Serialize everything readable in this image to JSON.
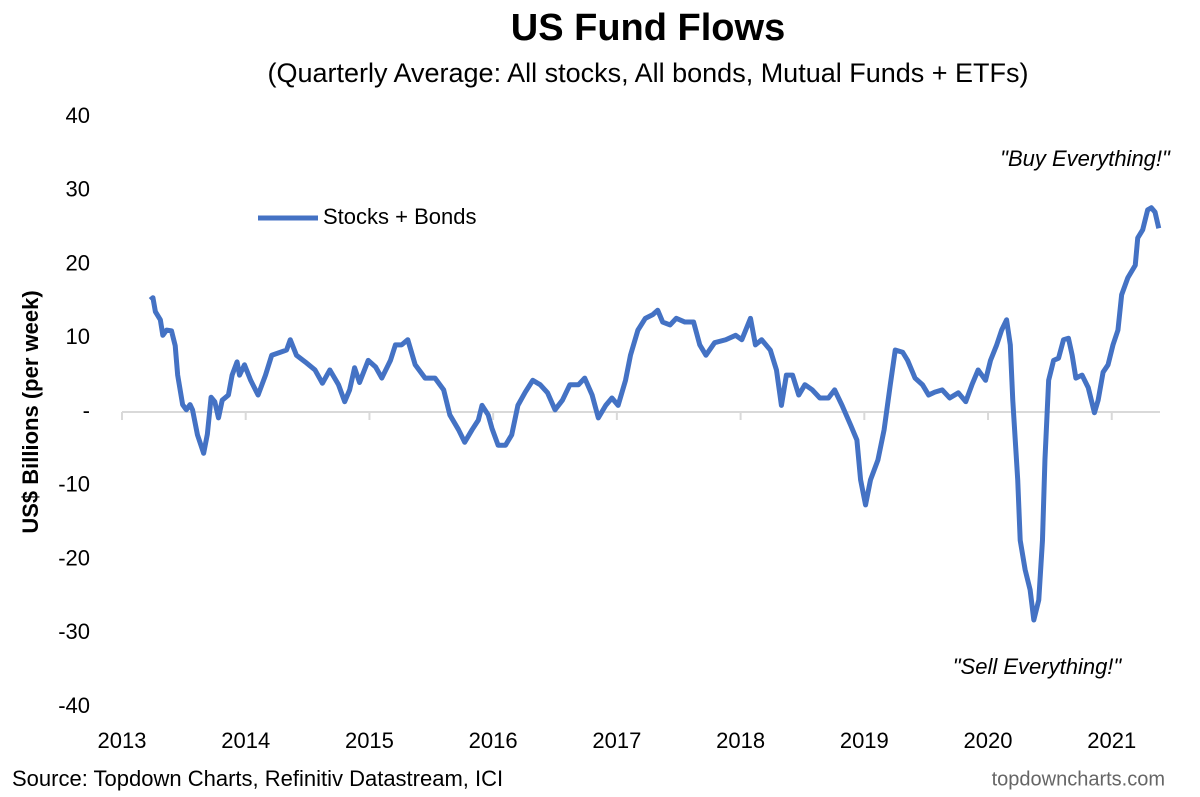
{
  "chart_data": {
    "type": "line",
    "title": "US Fund Flows",
    "subtitle": "(Quarterly Average: All stocks, All bonds, Mutual Funds + ETFs)",
    "y_label": "US$ Billions  (per week)",
    "annotations": [
      "\"Buy Everything!\"",
      "\"Sell Everything!\""
    ],
    "source": "Source: Topdown Charts, Refinitiv Datastream, ICI",
    "watermark": "topdowncharts.com",
    "xlim": [
      2013,
      2021.39
    ],
    "xticks": [
      2013,
      2014,
      2015,
      2016,
      2017,
      2018,
      2019,
      2020,
      2021
    ],
    "ylim": [
      -40,
      40
    ],
    "yticks": [
      -40,
      -30,
      -20,
      -10,
      {
        "value": 0,
        "label": "-"
      },
      10,
      20,
      30,
      40
    ],
    "legend": "upper left",
    "x": [
      2013.23,
      2013.25,
      2013.27,
      2013.31,
      2013.33,
      2013.36,
      2013.4,
      2013.43,
      2013.45,
      2013.49,
      2013.52,
      2013.55,
      2013.57,
      2013.61,
      2013.66,
      2013.69,
      2013.72,
      2013.75,
      2013.78,
      2013.81,
      2013.86,
      2013.89,
      2013.93,
      2013.95,
      2013.99,
      2014.04,
      2014.1,
      2014.16,
      2014.21,
      2014.28,
      2014.33,
      2014.36,
      2014.41,
      2014.48,
      2014.56,
      2014.62,
      2014.68,
      2014.75,
      2014.8,
      2014.84,
      2014.88,
      2014.92,
      2014.99,
      2015.05,
      2015.1,
      2015.17,
      2015.21,
      2015.26,
      2015.31,
      2015.37,
      2015.45,
      2015.53,
      2015.6,
      2015.65,
      2015.72,
      2015.77,
      2015.83,
      2015.88,
      2015.91,
      2015.96,
      2015.99,
      2016.04,
      2016.1,
      2016.15,
      2016.2,
      2016.26,
      2016.32,
      2016.38,
      2016.44,
      2016.5,
      2016.56,
      2016.62,
      2016.69,
      2016.74,
      2016.8,
      2016.85,
      2016.91,
      2016.96,
      2017.01,
      2017.07,
      2017.11,
      2017.17,
      2017.23,
      2017.29,
      2017.33,
      2017.37,
      2017.43,
      2017.48,
      2017.55,
      2017.62,
      2017.67,
      2017.72,
      2017.79,
      2017.88,
      2017.96,
      2018.01,
      2018.08,
      2018.12,
      2018.17,
      2018.24,
      2018.29,
      2018.33,
      2018.37,
      2018.42,
      2018.47,
      2018.52,
      2018.58,
      2018.64,
      2018.71,
      2018.76,
      2018.82,
      2018.89,
      2018.94,
      2018.97,
      2019.01,
      2019.05,
      2019.11,
      2019.16,
      2019.21,
      2019.25,
      2019.31,
      2019.35,
      2019.41,
      2019.47,
      2019.52,
      2019.57,
      2019.63,
      2019.69,
      2019.76,
      2019.82,
      2019.87,
      2019.92,
      2019.98,
      2020.02,
      2020.07,
      2020.11,
      2020.15,
      2020.18,
      2020.2,
      2020.24,
      2020.26,
      2020.3,
      2020.34,
      2020.37,
      2020.41,
      2020.44,
      2020.46,
      2020.49,
      2020.53,
      2020.57,
      2020.61,
      2020.65,
      2020.68,
      2020.71,
      2020.76,
      2020.81,
      2020.86,
      2020.89,
      2020.93,
      2020.97,
      2021.01,
      2021.05,
      2021.08,
      2021.13,
      2021.19,
      2021.21,
      2021.25,
      2021.29,
      2021.32,
      2021.35,
      2021.38
    ],
    "series": [
      {
        "name": "Stocks + Bonds",
        "color": "#4472c4",
        "values": [
          15.2,
          15.5,
          13.6,
          12.5,
          10.4,
          11.1,
          11,
          9,
          5,
          1,
          0.3,
          1,
          0.3,
          -3.1,
          -5.6,
          -3,
          2,
          1.4,
          -0.8,
          1.6,
          2.3,
          5,
          6.8,
          5,
          6.4,
          4.3,
          2.3,
          5,
          7.7,
          8.1,
          8.4,
          9.8,
          7.7,
          6.8,
          5.7,
          3.9,
          5.7,
          3.7,
          1.4,
          3,
          6,
          4,
          7,
          6.1,
          4.6,
          7,
          9.1,
          9.1,
          9.8,
          6.4,
          4.6,
          4.6,
          3,
          -0.4,
          -2.4,
          -4.1,
          -2.4,
          -1.1,
          0.9,
          -0.4,
          -2.2,
          -4.5,
          -4.5,
          -3.1,
          0.9,
          2.7,
          4.3,
          3.7,
          2.6,
          0.3,
          1.6,
          3.7,
          3.7,
          4.6,
          2.3,
          -0.8,
          0.9,
          1.9,
          0.9,
          4.3,
          7.7,
          11.1,
          12.7,
          13.2,
          13.8,
          12.2,
          11.8,
          12.7,
          12.2,
          12.2,
          9.1,
          7.7,
          9.4,
          9.8,
          10.4,
          9.8,
          12.7,
          9.1,
          9.8,
          8.4,
          5.7,
          0.9,
          5,
          5,
          2.3,
          3.7,
          3,
          1.9,
          1.9,
          3,
          0.9,
          -1.8,
          -3.8,
          -9.2,
          -12.6,
          -9.2,
          -6.5,
          -2.4,
          3.7,
          8.4,
          8.1,
          7,
          4.6,
          3.7,
          2.3,
          2.7,
          3,
          1.9,
          2.6,
          1.4,
          3.7,
          5.7,
          4.3,
          7,
          9.1,
          11.1,
          12.5,
          9.1,
          1.6,
          -9.2,
          -17.4,
          -21.4,
          -24.1,
          -28.2,
          -25.5,
          -17.4,
          -6.5,
          4.3,
          7,
          7.3,
          9.8,
          10,
          7.7,
          4.6,
          5,
          3.3,
          -0.1,
          1.6,
          5.4,
          6.4,
          9.1,
          11.1,
          15.9,
          18.2,
          19.9,
          23.6,
          24.7,
          27.4,
          27.7,
          27.1,
          24.9
        ]
      }
    ]
  }
}
